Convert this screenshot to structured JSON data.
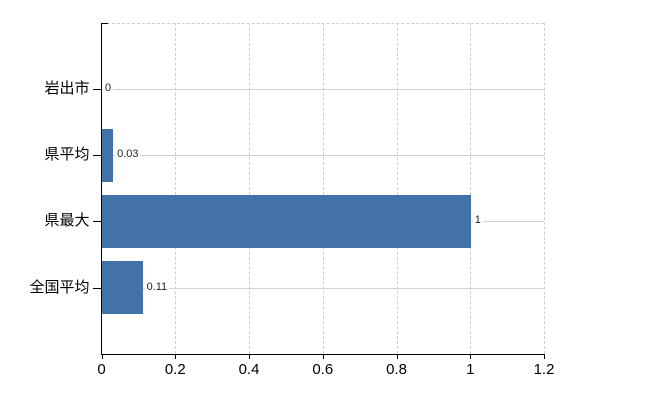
{
  "chart_data": {
    "type": "bar",
    "orientation": "horizontal",
    "categories": [
      "岩出市",
      "県平均",
      "県最大",
      "全国平均"
    ],
    "values": [
      0,
      0.03,
      1,
      0.11
    ],
    "value_labels": [
      "0",
      "0.03",
      "1",
      "0.11"
    ],
    "x_ticks": [
      "0",
      "0.2",
      "0.4",
      "0.6",
      "0.8",
      "1",
      "1.2"
    ],
    "x_tick_values": [
      0,
      0.2,
      0.4,
      0.6,
      0.8,
      1,
      1.2
    ],
    "xlim": [
      0,
      1.2
    ],
    "grid": "on",
    "legend": "none",
    "colors": {
      "bar": "#4372a8",
      "h_grid": "#ccd4cb",
      "v_grid": "#d3cbd3",
      "axis": "#000000",
      "value_text": "#222222",
      "tick_text": "#000000",
      "background": "#ffffff"
    }
  }
}
